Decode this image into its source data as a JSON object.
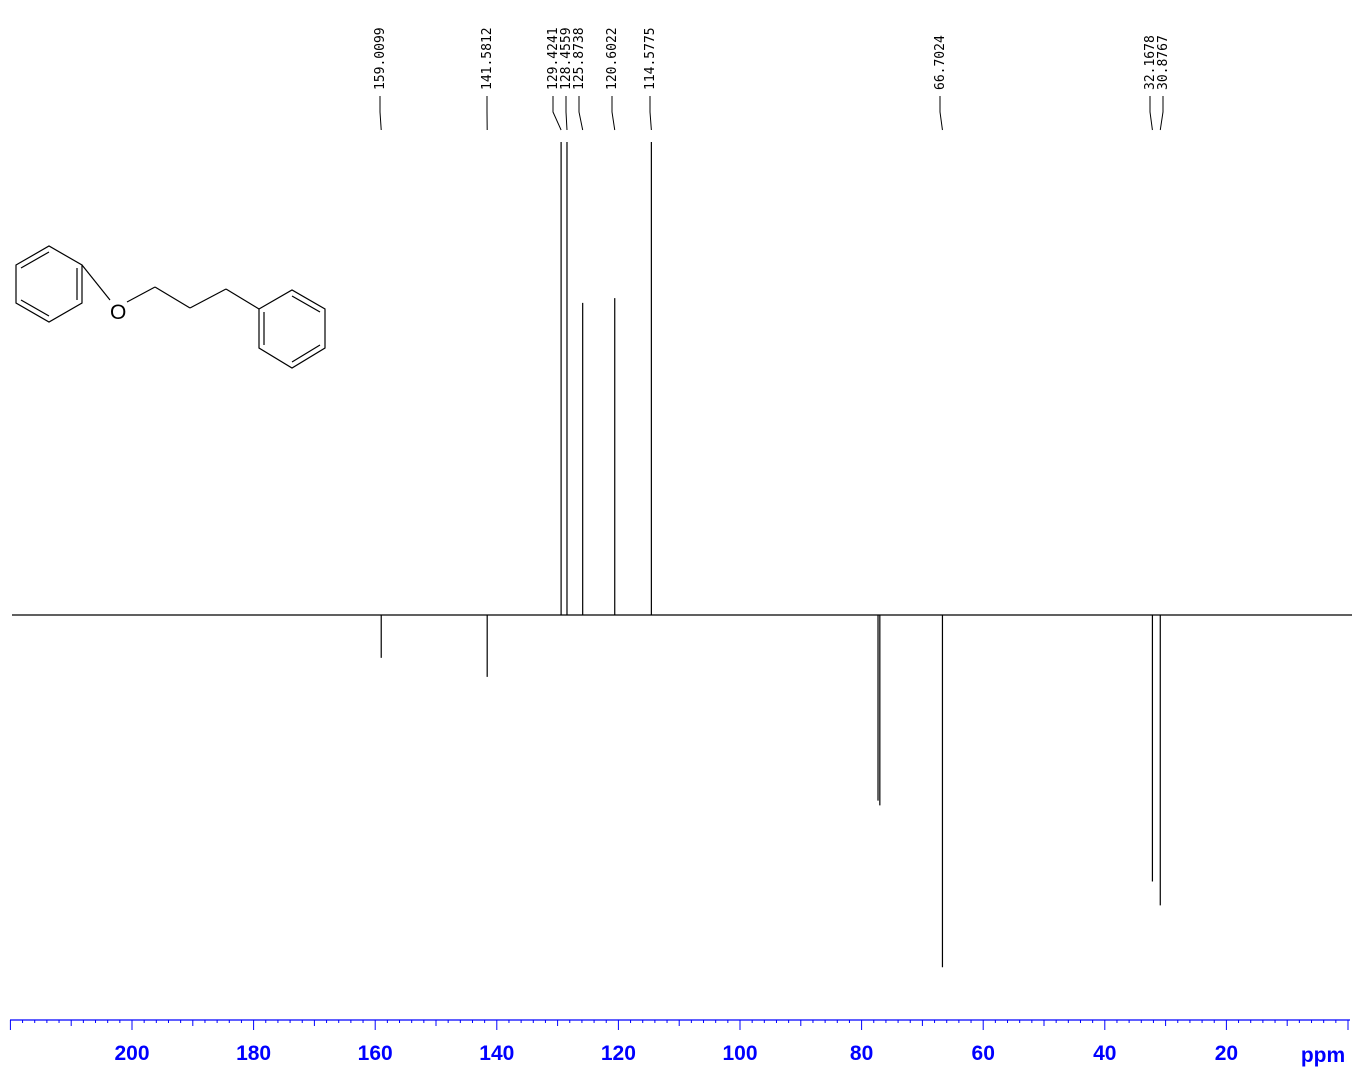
{
  "chart_data": {
    "type": "nmr_spectrum",
    "xunit": "ppm",
    "xlim": [
      220,
      0
    ],
    "xticks": [
      200,
      180,
      160,
      140,
      120,
      100,
      80,
      60,
      40,
      20
    ],
    "peak_labels": [
      "159.0099",
      "141.5812",
      "129.4241",
      "128.4559",
      "125.8738",
      "120.6022",
      "114.5775",
      "66.7024",
      "32.1678",
      "30.8767"
    ],
    "peaks": [
      {
        "ppm": 159.0099,
        "intensity": -0.09
      },
      {
        "ppm": 141.5812,
        "intensity": -0.13
      },
      {
        "ppm": 129.4241,
        "intensity": 1.0
      },
      {
        "ppm": 128.4559,
        "intensity": 1.0
      },
      {
        "ppm": 125.8738,
        "intensity": 0.66
      },
      {
        "ppm": 120.6022,
        "intensity": 0.67
      },
      {
        "ppm": 114.5775,
        "intensity": 1.0
      },
      {
        "ppm": 77.3,
        "intensity": -0.39
      },
      {
        "ppm": 77.0,
        "intensity": -0.4
      },
      {
        "ppm": 66.7024,
        "intensity": -0.74
      },
      {
        "ppm": 32.1678,
        "intensity": -0.56
      },
      {
        "ppm": 30.8767,
        "intensity": -0.61
      }
    ]
  },
  "molecule": {
    "atom_labels": [
      "O"
    ]
  },
  "colors": {
    "axis": "#0000ff",
    "spectrum": "#000000"
  }
}
